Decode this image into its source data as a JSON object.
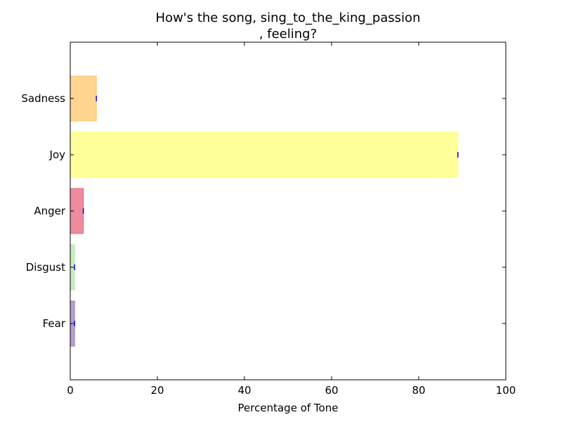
{
  "chart_data": {
    "type": "bar",
    "orientation": "horizontal",
    "title_line1": "How's the song, sing_to_the_king_passion",
    "title_line2": ", feeling?",
    "xlabel": "Percentage of Tone",
    "ylabel": "",
    "xlim": [
      0,
      100
    ],
    "x_ticks": [
      "0",
      "20",
      "40",
      "60",
      "80",
      "100"
    ],
    "categories": [
      "Fear",
      "Disgust",
      "Anger",
      "Joy",
      "Sadness"
    ],
    "values": [
      1,
      1,
      3,
      89,
      6
    ],
    "colors": [
      "#9b7fc0",
      "#b7e6b0",
      "#e8667e",
      "#ffff77",
      "#ffc76a"
    ],
    "error_marker_color": "#0000ff",
    "grid": false,
    "legend": "none"
  }
}
